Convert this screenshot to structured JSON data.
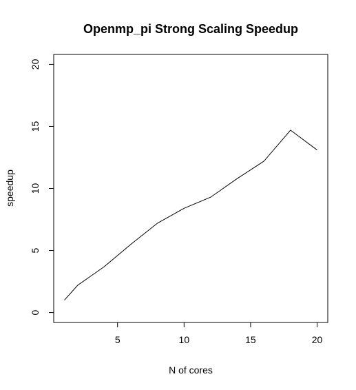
{
  "chart_data": {
    "type": "line",
    "title": "Openmp_pi Strong Scaling Speedup",
    "xlabel": "N of cores",
    "ylabel": "speedup",
    "x": [
      1,
      2,
      4,
      6,
      8,
      10,
      12,
      14,
      16,
      18,
      20
    ],
    "series": [
      {
        "values": [
          1.0,
          2.2,
          3.7,
          5.5,
          7.2,
          8.4,
          9.3,
          10.8,
          12.2,
          14.7,
          13.1
        ]
      }
    ],
    "xlim": [
      0.2,
      20.8
    ],
    "ylim": [
      -0.8,
      20.8
    ],
    "xticks": [
      5,
      10,
      15,
      20
    ],
    "yticks": [
      0,
      5,
      10,
      15,
      20
    ],
    "grid": false,
    "legend": "none",
    "line_color": "#000000"
  }
}
